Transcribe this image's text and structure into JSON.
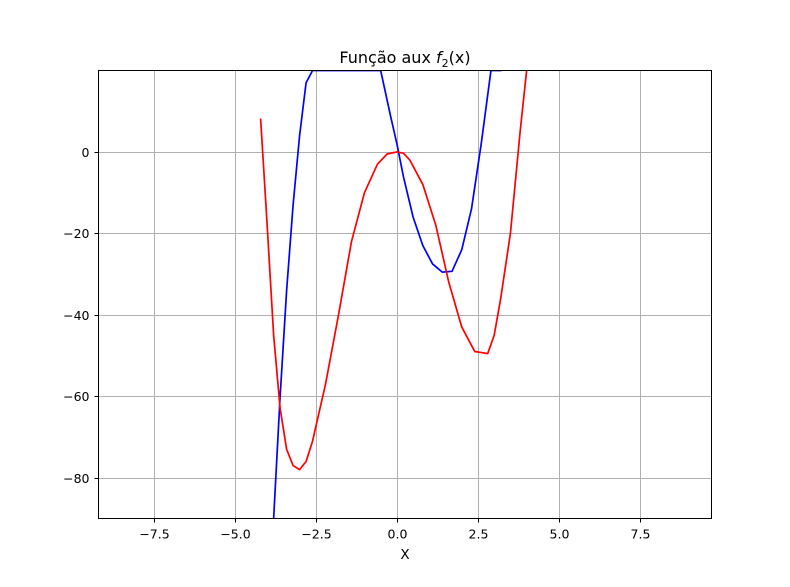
{
  "chart_data": {
    "type": "line",
    "title_prefix": "Função aux ",
    "title_math": "f",
    "title_sub": "2",
    "title_suffix": "(x)",
    "xlabel": "X",
    "ylabel": "",
    "xlim": [
      -9.2,
      9.7
    ],
    "ylim": [
      -90,
      20
    ],
    "x_ticks": [
      -7.5,
      -5.0,
      -2.5,
      0.0,
      2.5,
      5.0,
      7.5
    ],
    "x_tick_labels": [
      "−7.5",
      "−5.0",
      "−2.5",
      "0.0",
      "2.5",
      "5.0",
      "7.5"
    ],
    "y_ticks": [
      0,
      -20,
      -40,
      -60,
      -80
    ],
    "y_tick_labels": [
      "0",
      "−20",
      "−40",
      "−60",
      "−80"
    ],
    "grid": true,
    "series": [
      {
        "color": "#0000ff",
        "x": [
          -3.8,
          -3.6,
          -3.4,
          -3.2,
          -3.0,
          -2.8,
          -2.6,
          -0.5,
          -0.2,
          0.0,
          0.2,
          0.5,
          0.8,
          1.1,
          1.4,
          1.7,
          2.0,
          2.3,
          2.6,
          2.9,
          3.2
        ],
        "y": [
          -90,
          -60,
          -34,
          -13,
          4,
          17,
          20,
          20,
          9,
          2,
          -6,
          -16,
          -23,
          -27.5,
          -29.5,
          -29.3,
          -24,
          -14,
          2,
          20,
          20
        ]
      },
      {
        "color": "#ff0000",
        "x": [
          -4.2,
          -4.0,
          -3.8,
          -3.6,
          -3.4,
          -3.2,
          -3.0,
          -2.8,
          -2.6,
          -2.2,
          -1.8,
          -1.4,
          -1.0,
          -0.6,
          -0.3,
          0.0,
          0.2,
          0.4,
          0.8,
          1.2,
          1.6,
          2.0,
          2.4,
          2.8,
          3.0,
          3.2,
          3.5,
          3.8,
          4.0
        ],
        "y": [
          8,
          -18,
          -45,
          -63,
          -73,
          -77,
          -78,
          -76,
          -71,
          -57,
          -40,
          -22,
          -10,
          -3,
          -0.5,
          0,
          -0.3,
          -2,
          -8,
          -18,
          -32,
          -43,
          -49,
          -49.5,
          -45,
          -36,
          -20,
          5,
          20
        ]
      }
    ]
  }
}
